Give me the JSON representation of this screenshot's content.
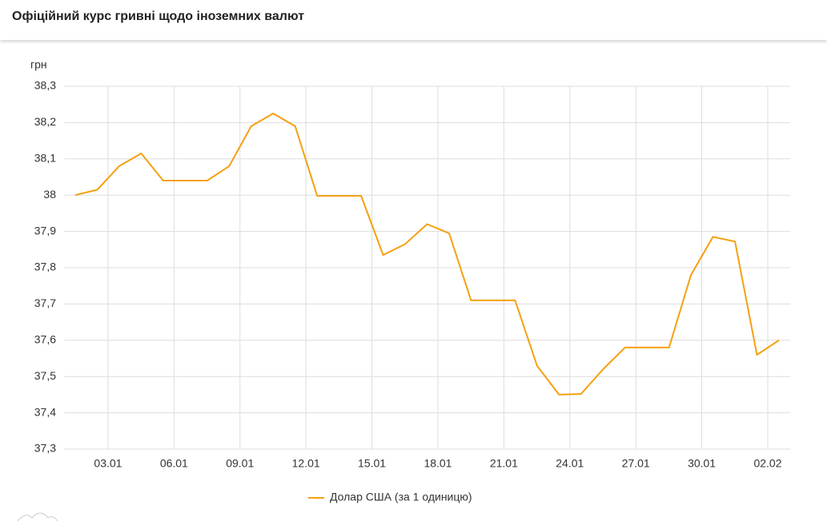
{
  "chart_data": {
    "type": "line",
    "title": "Офіційний курс гривні щодо іноземних валют",
    "y_label": "грн",
    "categories": [
      null,
      null,
      "03.01",
      null,
      null,
      "06.01",
      null,
      null,
      "09.01",
      null,
      null,
      "12.01",
      null,
      null,
      "15.01",
      null,
      null,
      "18.01",
      null,
      null,
      "21.01",
      null,
      null,
      "24.01",
      null,
      null,
      "27.01",
      null,
      null,
      "30.01",
      null,
      null,
      "02.02"
    ],
    "series": [
      {
        "name": "Долар США (за 1 одиницю)",
        "color": "#f5a010",
        "values": [
          38.0,
          38.015,
          38.08,
          38.115,
          38.04,
          38.04,
          38.04,
          38.08,
          38.19,
          38.225,
          38.19,
          37.998,
          37.998,
          37.998,
          37.835,
          37.865,
          37.92,
          37.895,
          37.71,
          37.71,
          37.71,
          37.53,
          37.45,
          37.452,
          37.52,
          37.58,
          37.58,
          37.58,
          37.78,
          37.885,
          37.872,
          37.56,
          37.6
        ]
      }
    ],
    "ylim": [
      37.3,
      38.3
    ],
    "yticks": [
      {
        "value": 37.3,
        "label": "37,3"
      },
      {
        "value": 37.4,
        "label": "37,4"
      },
      {
        "value": 37.5,
        "label": "37,5"
      },
      {
        "value": 37.6,
        "label": "37,6"
      },
      {
        "value": 37.7,
        "label": "37,7"
      },
      {
        "value": 37.8,
        "label": "37,8"
      },
      {
        "value": 37.9,
        "label": "37,9"
      },
      38,
      {
        "value": 38.1,
        "label": "38,1"
      },
      {
        "value": 38.2,
        "label": "38,2"
      },
      {
        "value": 38.3,
        "label": "38,3"
      }
    ],
    "grid": true,
    "legend": "bottom"
  }
}
